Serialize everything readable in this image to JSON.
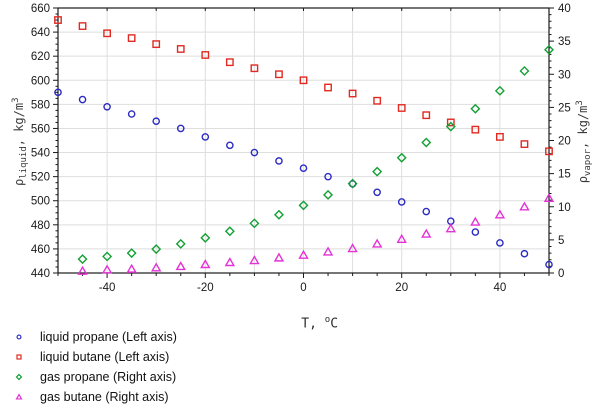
{
  "chart_data": {
    "type": "scatter",
    "title": "",
    "grid": true,
    "legend_position": "bottom-left",
    "x_axis": {
      "label_parts": {
        "prefix": "T, ",
        "sup": "o",
        "suffix": "C"
      },
      "min": -50,
      "max": 50,
      "label_step": 20,
      "grid_step": 10,
      "minor_tick": 5,
      "tick_labels": [
        "-40",
        "-20",
        "0",
        "20",
        "40"
      ]
    },
    "left_axis": {
      "label_parts": {
        "symbol": "ρ",
        "sub": "liquid",
        "mid": ", kg/m",
        "sup": "3"
      },
      "min": 440,
      "max": 660,
      "label_step": 20,
      "minor_tick": 5,
      "tick_labels": [
        "440",
        "460",
        "480",
        "500",
        "520",
        "540",
        "560",
        "580",
        "600",
        "620",
        "640",
        "660"
      ]
    },
    "right_axis": {
      "label_parts": {
        "symbol": "ρ",
        "sub": "vapor",
        "mid": ", kg/m",
        "sup": "3"
      },
      "min": 0,
      "max": 40,
      "label_step": 5,
      "minor_tick": 1,
      "tick_labels": [
        "0",
        "5",
        "10",
        "15",
        "20",
        "25",
        "30",
        "35",
        "40"
      ]
    },
    "series": [
      {
        "name": "liquid propane (Left axis)",
        "axis": "left",
        "marker": "circle",
        "color": "#2b2bc4",
        "x": [
          -50,
          -45,
          -40,
          -35,
          -30,
          -25,
          -20,
          -15,
          -10,
          -5,
          0,
          5,
          10,
          15,
          20,
          25,
          30,
          35,
          40,
          45,
          50
        ],
        "y": [
          590,
          584,
          578,
          572,
          566,
          560,
          553,
          546,
          540,
          533,
          527,
          520,
          514,
          507,
          499,
          491,
          483,
          474,
          465,
          456,
          447
        ]
      },
      {
        "name": "liquid butane (Left axis)",
        "axis": "left",
        "marker": "square",
        "color": "#e02a22",
        "x": [
          -50,
          -45,
          -40,
          -35,
          -30,
          -25,
          -20,
          -15,
          -10,
          -5,
          0,
          5,
          10,
          15,
          20,
          25,
          30,
          35,
          40,
          45,
          50
        ],
        "y": [
          650,
          645,
          639,
          635,
          630,
          626,
          621,
          615,
          610,
          605,
          600,
          594,
          589,
          583,
          577,
          571,
          565,
          559,
          553,
          547,
          541
        ]
      },
      {
        "name": "gas propane (Right axis)",
        "axis": "right",
        "marker": "diamond",
        "color": "#12a033",
        "x": [
          -45,
          -40,
          -35,
          -30,
          -25,
          -20,
          -15,
          -10,
          -5,
          0,
          5,
          10,
          15,
          20,
          25,
          30,
          35,
          40,
          45,
          50
        ],
        "y": [
          2.1,
          2.5,
          3.0,
          3.6,
          4.4,
          5.3,
          6.3,
          7.5,
          8.8,
          10.2,
          11.8,
          13.5,
          15.3,
          17.4,
          19.7,
          22.1,
          24.8,
          27.5,
          30.5,
          33.7
        ]
      },
      {
        "name": "gas butane (Right axis)",
        "axis": "right",
        "marker": "triangle",
        "color": "#e332d6",
        "x": [
          -45,
          -40,
          -35,
          -30,
          -25,
          -20,
          -15,
          -10,
          -5,
          0,
          5,
          10,
          15,
          20,
          25,
          30,
          35,
          40,
          45,
          50
        ],
        "y": [
          0.3,
          0.5,
          0.6,
          0.8,
          1.0,
          1.3,
          1.6,
          1.9,
          2.3,
          2.7,
          3.2,
          3.7,
          4.4,
          5.1,
          5.9,
          6.7,
          7.7,
          8.8,
          10.0,
          11.3
        ]
      }
    ],
    "colors": {
      "grid": "#dedede",
      "frame": "#1a1a1a",
      "background": "#ffffff"
    }
  }
}
